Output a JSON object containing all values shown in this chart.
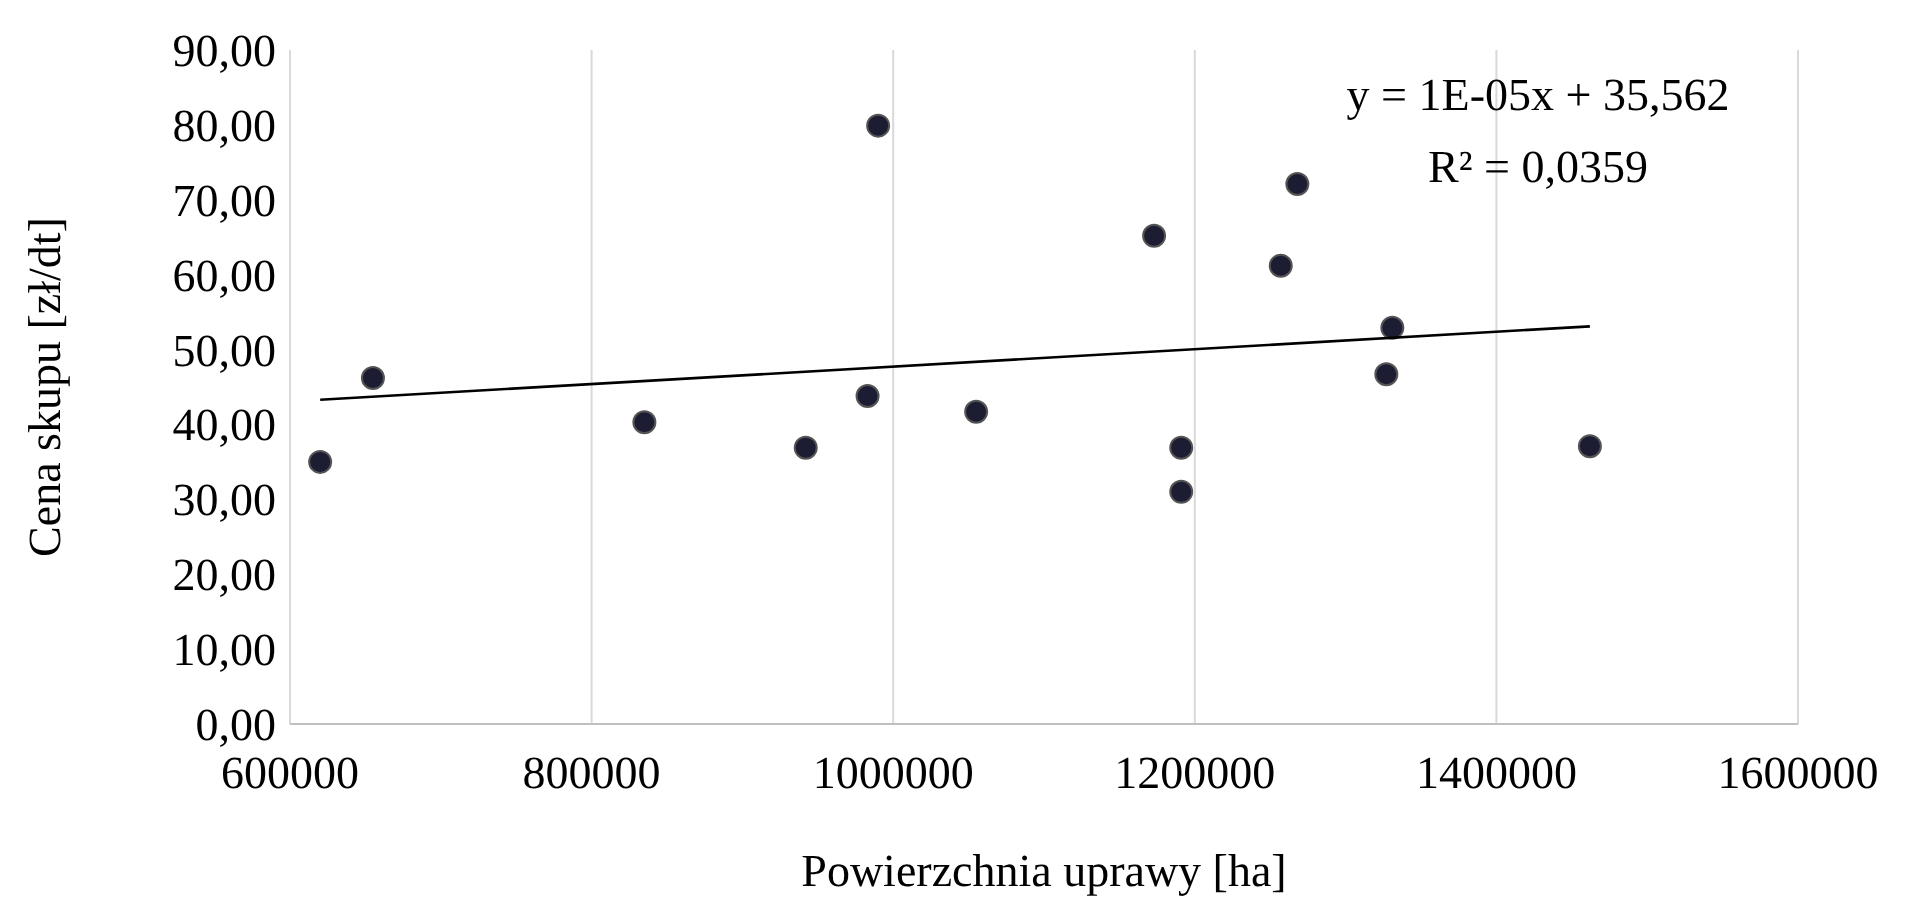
{
  "chart_data": {
    "type": "scatter",
    "xlabel": "Powierzchnia uprawy [ha]",
    "ylabel": "Cena skupu [zł/dt]",
    "x": [
      620000,
      655000,
      835000,
      942000,
      983000,
      990000,
      1055000,
      1173000,
      1191000,
      1191000,
      1257000,
      1268000,
      1331000,
      1327000,
      1462000
    ],
    "series": [
      {
        "color": "#1c1c33",
        "values": [
          35.0,
          46.2,
          40.3,
          36.9,
          43.8,
          79.9,
          41.7,
          65.2,
          36.9,
          31.0,
          61.2,
          72.1,
          52.9,
          46.7,
          37.1
        ]
      },
      {
        "type": "line",
        "marker": "none",
        "color": "#000000",
        "x": [
          620000,
          1462000
        ],
        "values": [
          43.3,
          53.1
        ]
      }
    ],
    "xlim": [
      600000,
      1600000
    ],
    "xticks": [
      600000,
      800000,
      1000000,
      1200000,
      1400000,
      1600000
    ],
    "ylim": [
      0,
      90
    ],
    "yticks": [
      {
        "value": 0,
        "label": "0,00"
      },
      {
        "value": 10,
        "label": "10,00"
      },
      {
        "value": 20,
        "label": "20,00"
      },
      {
        "value": 30,
        "label": "30,00"
      },
      {
        "value": 40,
        "label": "40,00"
      },
      {
        "value": 50,
        "label": "50,00"
      },
      {
        "value": 60,
        "label": "60,00"
      },
      {
        "value": 70,
        "label": "70,00"
      },
      {
        "value": 80,
        "label": "80,00"
      },
      {
        "value": 90,
        "label": "90,00"
      }
    ],
    "annotations": [
      "y = 1E-05x + 35,562",
      "R² = 0,0359"
    ],
    "grid": "x",
    "marker": "circle"
  }
}
